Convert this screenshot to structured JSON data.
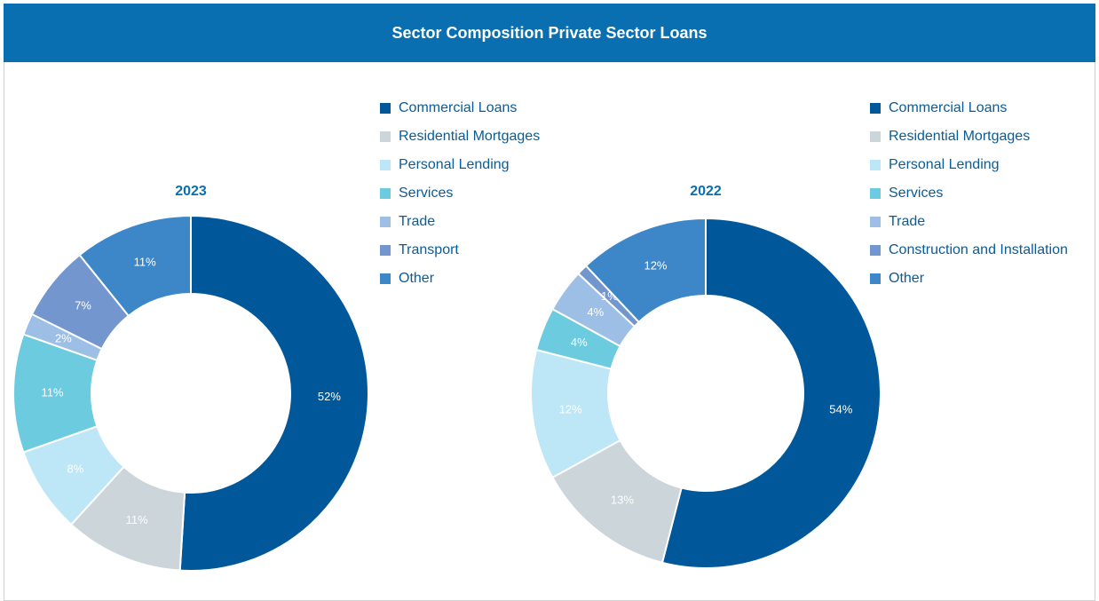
{
  "title": "Sector Composition Private Sector Loans",
  "chart_data": [
    {
      "type": "donut",
      "title": "2023",
      "categories": [
        "Commercial Loans",
        "Residential Mortgages",
        "Personal Lending",
        "Services",
        "Trade",
        "Transport",
        "Other"
      ],
      "values": [
        52,
        11,
        8,
        11,
        2,
        7,
        11
      ],
      "value_labels": [
        "52%",
        "11%",
        "8%",
        "11%",
        "2%",
        "7%",
        "11%"
      ],
      "colors": [
        "#00589b",
        "#cbd5da",
        "#bde6f7",
        "#6dcbe0",
        "#9dbfe6",
        "#7396cf",
        "#3d87c8"
      ]
    },
    {
      "type": "donut",
      "title": "2022",
      "categories": [
        "Commercial Loans",
        "Residential Mortgages",
        "Personal Lending",
        "Services",
        "Trade",
        "Construction and Installation",
        "Other"
      ],
      "values": [
        54,
        13,
        12,
        4,
        4,
        1,
        12
      ],
      "value_labels": [
        "54%",
        "13%",
        "12%",
        "4%",
        "4%",
        "1%",
        "12%"
      ],
      "colors": [
        "#00589b",
        "#cbd5da",
        "#bde6f7",
        "#6dcbe0",
        "#9dbfe6",
        "#7396cf",
        "#3d87c8"
      ]
    }
  ]
}
